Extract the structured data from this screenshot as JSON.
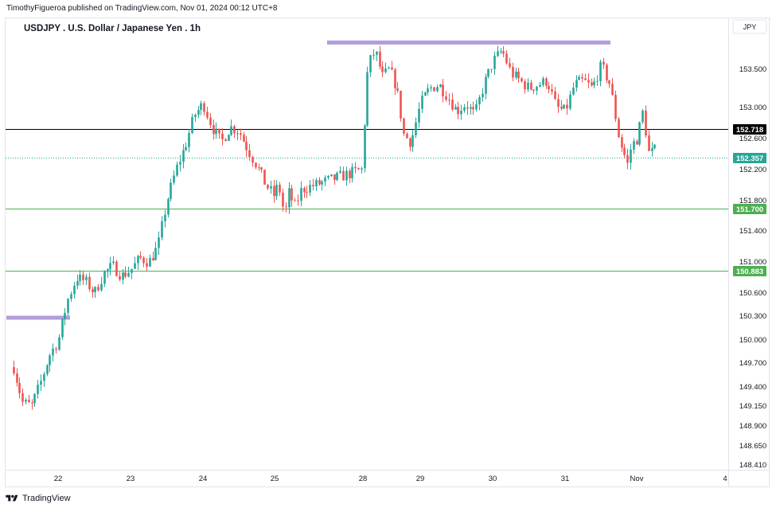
{
  "header": {
    "published": "TimothyFigueroa published on TradingView.com, Nov 01, 2024 00:12 UTC+8"
  },
  "footer": {
    "brand": "TradingView"
  },
  "chart_data": {
    "type": "candlestick",
    "title": "USDJPY . U.S. Dollar / Japanese Yen . 1h",
    "currency": "JPY",
    "x_ticks": [
      "22",
      "23",
      "24",
      "25",
      "28",
      "29",
      "30",
      "31",
      "Nov",
      "4"
    ],
    "y_ticks": [
      153.5,
      153.0,
      152.6,
      152.2,
      151.8,
      151.4,
      151.0,
      150.6,
      150.3,
      150.0,
      149.7,
      149.4,
      149.15,
      148.9,
      148.65,
      148.41
    ],
    "y_tick_labels": [
      "153.500",
      "153.000",
      "152.600",
      "152.200",
      "151.800",
      "151.400",
      "151.000",
      "150.600",
      "150.300",
      "150.000",
      "149.700",
      "149.400",
      "149.150",
      "148.900",
      "148.650",
      "148.410"
    ],
    "scale": "log",
    "grid": false,
    "colors": {
      "up": "#26a69a",
      "down": "#ef5350",
      "resistance_band": "#b39ddb",
      "support_line": "#4caf50",
      "current_price": "#26a69a",
      "price_line": "#000000"
    },
    "horizontal_lines": [
      {
        "price": 152.718,
        "label": "152.718",
        "color": "#000000",
        "style": "solid"
      },
      {
        "price": 152.357,
        "label": "152.357",
        "color": "#26a69a",
        "style": "dotted"
      },
      {
        "price": 151.7,
        "label": "151.700",
        "color": "#4caf50",
        "style": "solid"
      },
      {
        "price": 150.883,
        "label": "150.883",
        "color": "#4caf50",
        "style": "solid"
      }
    ],
    "bands": [
      {
        "price": 153.85,
        "x_from": "Oct 27 12:00",
        "x_to": "Oct 31 06:00"
      },
      {
        "price": 150.28,
        "x_from": "Oct 21 09:00",
        "x_to": "Oct 22 03:00"
      }
    ],
    "path": [
      [
        "21 09",
        149.65
      ],
      [
        "21 12",
        149.2
      ],
      [
        "21 15",
        149.15
      ],
      [
        "21 18",
        149.45
      ],
      [
        "21 21",
        149.8
      ],
      [
        "22 00",
        150.0
      ],
      [
        "22 03",
        150.5
      ],
      [
        "22 06",
        150.8
      ],
      [
        "22 09",
        150.75
      ],
      [
        "22 12",
        150.6
      ],
      [
        "22 15",
        150.85
      ],
      [
        "22 18",
        150.95
      ],
      [
        "22 21",
        150.82
      ],
      [
        "23 00",
        150.9
      ],
      [
        "23 03",
        151.05
      ],
      [
        "23 06",
        151.0
      ],
      [
        "23 09",
        151.2
      ],
      [
        "23 12",
        151.8
      ],
      [
        "23 15",
        152.2
      ],
      [
        "23 18",
        152.5
      ],
      [
        "23 21",
        152.9
      ],
      [
        "24 00",
        153.05
      ],
      [
        "24 03",
        152.75
      ],
      [
        "24 06",
        152.55
      ],
      [
        "24 09",
        152.75
      ],
      [
        "24 12",
        152.7
      ],
      [
        "24 15",
        152.45
      ],
      [
        "24 18",
        152.25
      ],
      [
        "24 21",
        152.0
      ],
      [
        "25 00",
        151.85
      ],
      [
        "25 03",
        152.05
      ],
      [
        "25 06",
        151.75
      ],
      [
        "25 09",
        151.65
      ],
      [
        "25 12",
        151.9
      ],
      [
        "25 15",
        151.8
      ],
      [
        "25 18",
        151.7
      ],
      [
        "25 21",
        151.9
      ],
      [
        "25 24",
        151.95
      ],
      [
        "27 21",
        152.2
      ],
      [
        "28 00",
        152.55
      ],
      [
        "28 02",
        153.55
      ],
      [
        "28 05",
        153.75
      ],
      [
        "28 08",
        153.4
      ],
      [
        "28 11",
        153.5
      ],
      [
        "28 14",
        153.25
      ],
      [
        "28 17",
        152.65
      ],
      [
        "28 20",
        152.55
      ],
      [
        "29 00",
        153.05
      ],
      [
        "29 03",
        153.25
      ],
      [
        "29 06",
        153.3
      ],
      [
        "29 09",
        153.15
      ],
      [
        "29 12",
        152.95
      ],
      [
        "29 15",
        153.05
      ],
      [
        "29 18",
        152.9
      ],
      [
        "29 21",
        153.3
      ],
      [
        "30 00",
        153.6
      ],
      [
        "30 03",
        153.75
      ],
      [
        "30 06",
        153.45
      ],
      [
        "30 09",
        153.35
      ],
      [
        "30 12",
        153.25
      ],
      [
        "30 15",
        153.3
      ],
      [
        "30 18",
        153.35
      ],
      [
        "30 21",
        153.0
      ],
      [
        "31 00",
        152.95
      ],
      [
        "31 03",
        153.3
      ],
      [
        "31 06",
        153.35
      ],
      [
        "31 09",
        153.25
      ],
      [
        "31 12",
        153.55
      ],
      [
        "31 15",
        153.3
      ],
      [
        "31 18",
        152.6
      ],
      [
        "31 21",
        152.25
      ],
      [
        "31 22",
        152.5
      ],
      [
        "32 00",
        152.6
      ],
      [
        "32 02",
        152.95
      ],
      [
        "32 04",
        152.4
      ],
      [
        "32 06",
        152.45
      ]
    ]
  }
}
